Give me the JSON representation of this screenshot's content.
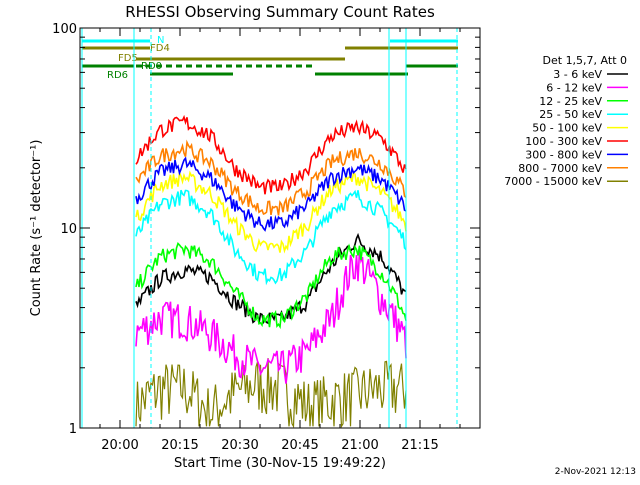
{
  "chart_data": {
    "type": "line",
    "title": "RHESSI Observing Summary Count Rates",
    "xlabel": "Start Time (30-Nov-15 19:49:22)",
    "ylabel": "Count Rate (s⁻¹ detector⁻¹)",
    "y_scale": "log",
    "ylim": [
      1,
      100
    ],
    "x_tick_labels": [
      "20:00",
      "20:15",
      "20:30",
      "20:45",
      "21:00",
      "21:15"
    ],
    "y_tick_labels": [
      "1",
      "10",
      "100"
    ],
    "legend_title": "Det 1,5,7, Att 0",
    "series": [
      {
        "name": "3 - 6 keV",
        "color": "#000000",
        "values": [
          4.0,
          5.6,
          6.2,
          5.7,
          4.3,
          3.5,
          3.5,
          4.3,
          6.6,
          8.7,
          7.2,
          4.5
        ]
      },
      {
        "name": "6 - 12 keV",
        "color": "#ff00ff",
        "values": [
          3.0,
          3.6,
          3.5,
          3.0,
          2.4,
          2.0,
          2.0,
          2.4,
          3.6,
          7.0,
          4.5,
          2.7
        ]
      },
      {
        "name": "12 - 25 keV",
        "color": "#00ff00",
        "values": [
          5.0,
          7.2,
          7.9,
          6.9,
          4.8,
          3.5,
          3.5,
          4.6,
          7.2,
          7.9,
          6.0,
          3.5
        ]
      },
      {
        "name": "25 - 50 keV",
        "color": "#00ffff",
        "values": [
          9.0,
          13.2,
          14.5,
          12.0,
          7.8,
          5.8,
          5.8,
          7.8,
          12.5,
          14.5,
          12.0,
          8.5
        ]
      },
      {
        "name": "50 - 100 keV",
        "color": "#ffff00",
        "values": [
          11.0,
          16.5,
          18.0,
          15.0,
          10.5,
          8.0,
          8.0,
          10.5,
          15.8,
          18.0,
          15.0,
          10.5
        ]
      },
      {
        "name": "100 - 300 keV",
        "color": "#ff0000",
        "values": [
          22.0,
          31.0,
          34.0,
          29.0,
          20.0,
          16.0,
          16.0,
          20.0,
          29.0,
          32.0,
          28.0,
          19.0
        ]
      },
      {
        "name": "300 - 800 keV",
        "color": "#0000ff",
        "values": [
          14.0,
          19.0,
          21.0,
          18.0,
          13.0,
          10.5,
          10.5,
          13.0,
          18.0,
          20.0,
          17.5,
          12.5
        ]
      },
      {
        "name": "800 - 7000 keV",
        "color": "#ff8000",
        "values": [
          17.0,
          23.0,
          25.0,
          21.5,
          15.5,
          12.5,
          12.5,
          15.5,
          21.5,
          24.0,
          21.0,
          15.0
        ]
      },
      {
        "name": "7000 - 15000 keV",
        "color": "#808000",
        "values": [
          1.3,
          1.6,
          1.6,
          1.2,
          1.5,
          1.7,
          1.6,
          1.3,
          1.4,
          1.5,
          1.6,
          1.6
        ]
      }
    ],
    "flag_labels": [
      {
        "text": "N",
        "color": "#00ffff"
      },
      {
        "text": "FD4",
        "color": "#808000"
      },
      {
        "text": "FD5",
        "color": "#808000"
      },
      {
        "text": "RD0",
        "color": "#008000"
      },
      {
        "text": "RD6",
        "color": "#008000"
      }
    ],
    "grid": false,
    "legend_position": "right"
  },
  "footer_timestamp": "2-Nov-2021 12:13"
}
